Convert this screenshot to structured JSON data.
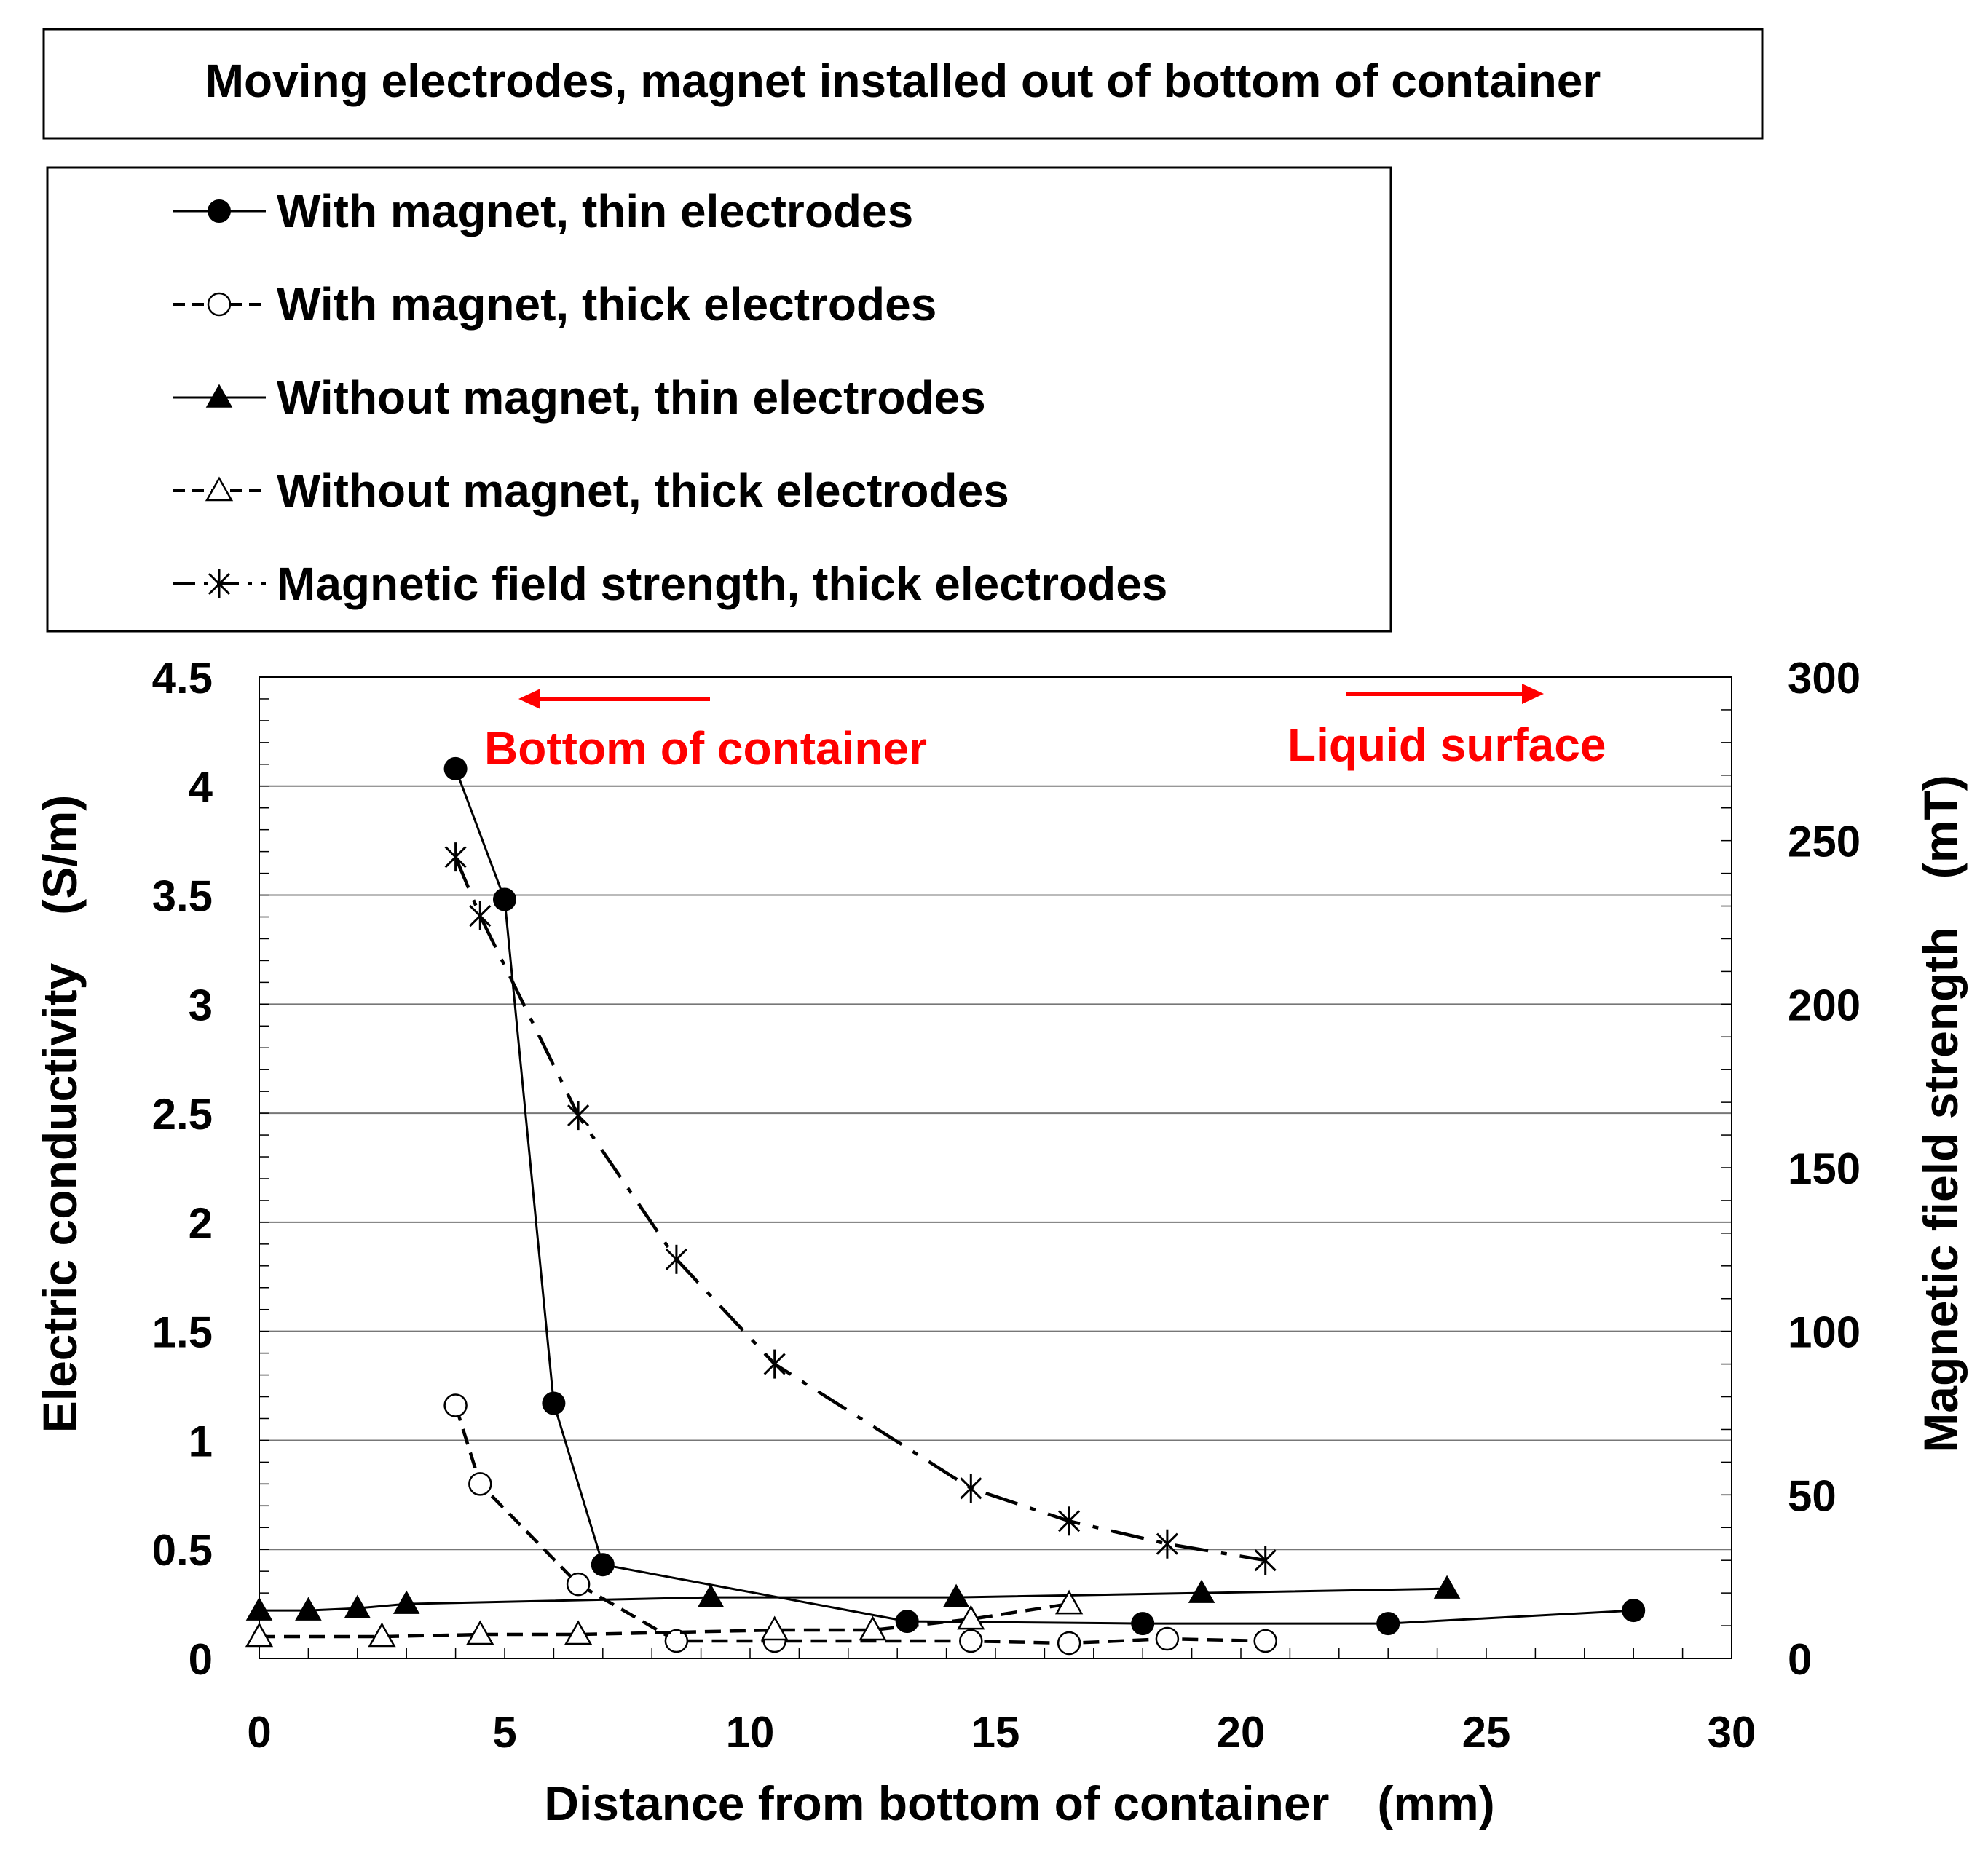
{
  "title": "Moving electrodes, magnet installed out of bottom of container",
  "chart_data": {
    "type": "line",
    "title": "Moving electrodes, magnet installed out of bottom of container",
    "xlabel": "Distance from bottom of container　(mm)",
    "ylabel": "Electric conductivity　(S/m)",
    "y2label": "Magnetic field strength　(mT)",
    "xlim": [
      0,
      30
    ],
    "ylim": [
      0,
      4.5
    ],
    "y2lim": [
      0,
      300
    ],
    "xticks": [
      "0",
      "5",
      "10",
      "15",
      "20",
      "25",
      "30"
    ],
    "yticks": [
      "0",
      "0.5",
      "1",
      "1.5",
      "2",
      "2.5",
      "3",
      "3.5",
      "4",
      "4.5"
    ],
    "y2ticks": [
      "0",
      "50",
      "100",
      "150",
      "200",
      "250",
      "300"
    ],
    "grid": "horizontal major lines",
    "legend_position": "above plot",
    "annotations": [
      {
        "text": "Bottom of container",
        "arrow": "left",
        "color": "#ff0000"
      },
      {
        "text": "Liquid surface",
        "arrow": "right",
        "color": "#ff0000"
      }
    ],
    "series": [
      {
        "name": "With magnet, thin electrodes",
        "marker": "filled-circle",
        "line": "solid",
        "axis": "left",
        "x": [
          4,
          5,
          6,
          7,
          13.2,
          18,
          23,
          28
        ],
        "y": [
          4.08,
          3.48,
          1.17,
          0.43,
          0.17,
          0.16,
          0.16,
          0.22
        ]
      },
      {
        "name": "With magnet, thick electrodes",
        "marker": "open-circle",
        "line": "dashed",
        "axis": "left",
        "x": [
          4,
          4.5,
          6.5,
          8.5,
          10.5,
          14.5,
          16.5,
          18.5,
          20.5
        ],
        "y": [
          1.16,
          0.8,
          0.34,
          0.08,
          0.08,
          0.08,
          0.07,
          0.09,
          0.08
        ]
      },
      {
        "name": "Without magnet, thin electrodes",
        "marker": "filled-triangle",
        "line": "solid",
        "axis": "left",
        "x": [
          0,
          1,
          2,
          3,
          9.2,
          14.2,
          19.2,
          24.2
        ],
        "y": [
          0.22,
          0.22,
          0.23,
          0.25,
          0.28,
          0.28,
          0.3,
          0.32
        ]
      },
      {
        "name": "Without magnet, thick electrodes",
        "marker": "open-triangle",
        "line": "dashed",
        "axis": "left",
        "x": [
          0,
          2.5,
          4.5,
          6.5,
          10.5,
          12.5,
          14.5,
          16.5
        ],
        "y": [
          0.1,
          0.1,
          0.11,
          0.11,
          0.13,
          0.13,
          0.18,
          0.25
        ]
      },
      {
        "name": "Magnetic field strength, thick electrodes",
        "marker": "asterisk",
        "line": "dash-dot",
        "axis": "right",
        "x": [
          4,
          4.5,
          6.5,
          8.5,
          10.5,
          14.5,
          16.5,
          18.5,
          20.5
        ],
        "y": [
          245,
          227,
          166,
          122,
          90,
          52,
          42,
          35,
          30
        ]
      }
    ]
  }
}
